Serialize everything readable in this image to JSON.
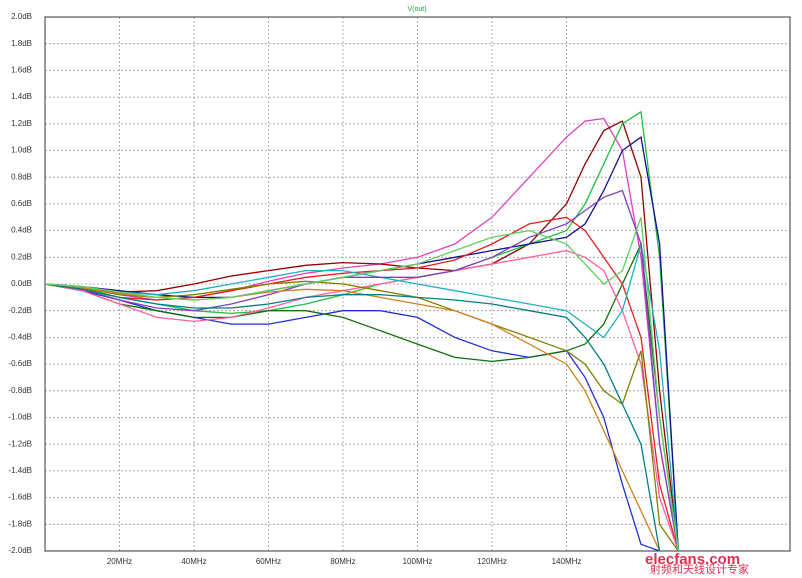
{
  "chart_data": {
    "type": "line",
    "title": "V(out)",
    "title_color": "#20a040",
    "x": [
      0,
      10,
      20,
      30,
      40,
      50,
      60,
      70,
      80,
      90,
      100,
      110,
      120,
      130,
      140,
      145,
      150,
      155,
      160,
      165,
      170
    ],
    "xlim": [
      0,
      200
    ],
    "xticks": [
      {
        "value": 20,
        "label": "20MHz"
      },
      {
        "value": 40,
        "label": "40MHz"
      },
      {
        "value": 60,
        "label": "60MHz"
      },
      {
        "value": 80,
        "label": "80MHz"
      },
      {
        "value": 100,
        "label": "100MHz"
      },
      {
        "value": 120,
        "label": "120MHz"
      },
      {
        "value": 140,
        "label": "140MHz"
      }
    ],
    "ylim": [
      -2.0,
      2.0
    ],
    "yticks": [
      {
        "value": 2.0,
        "label": "2.0dB"
      },
      {
        "value": 1.8,
        "label": "1.8dB"
      },
      {
        "value": 1.6,
        "label": "1.6dB"
      },
      {
        "value": 1.4,
        "label": "1.4dB"
      },
      {
        "value": 1.2,
        "label": "1.2dB"
      },
      {
        "value": 1.0,
        "label": "1.0dB"
      },
      {
        "value": 0.8,
        "label": "0.8dB"
      },
      {
        "value": 0.6,
        "label": "0.6dB"
      },
      {
        "value": 0.4,
        "label": "0.4dB"
      },
      {
        "value": 0.2,
        "label": "0.2dB"
      },
      {
        "value": 0,
        "label": "0.0dB"
      },
      {
        "value": -0.2,
        "label": "-0.2dB"
      },
      {
        "value": -0.4,
        "label": "-0.4dB"
      },
      {
        "value": -0.6,
        "label": "-0.6dB"
      },
      {
        "value": -0.8,
        "label": "-0.8dB"
      },
      {
        "value": -1.0,
        "label": "-1.0dB"
      },
      {
        "value": -1.2,
        "label": "-1.2dB"
      },
      {
        "value": -1.4,
        "label": "-1.4dB"
      },
      {
        "value": -1.6,
        "label": "-1.6dB"
      },
      {
        "value": -1.8,
        "label": "-1.8dB"
      },
      {
        "value": -2.0,
        "label": "-2.0dB"
      }
    ],
    "grid": true,
    "series": [
      {
        "color": "#e040c0",
        "values": [
          0,
          -0.02,
          -0.08,
          -0.12,
          -0.1,
          -0.05,
          0.02,
          0.08,
          0.12,
          0.15,
          0.2,
          0.3,
          0.5,
          0.8,
          1.1,
          1.22,
          1.24,
          1.0,
          0.2,
          -1.2,
          -2.0
        ]
      },
      {
        "color": "#900000",
        "values": [
          0,
          -0.03,
          -0.06,
          -0.05,
          0.0,
          0.06,
          0.1,
          0.14,
          0.16,
          0.15,
          0.12,
          0.1,
          0.15,
          0.3,
          0.6,
          0.9,
          1.15,
          1.22,
          0.8,
          -0.8,
          -2.0
        ]
      },
      {
        "color": "#20c040",
        "values": [
          0,
          -0.03,
          -0.1,
          -0.15,
          -0.2,
          -0.22,
          -0.2,
          -0.15,
          -0.08,
          0.0,
          0.05,
          0.1,
          0.2,
          0.3,
          0.4,
          0.6,
          0.9,
          1.2,
          1.29,
          0.2,
          -2.0
        ]
      },
      {
        "color": "#101090",
        "values": [
          0,
          -0.02,
          -0.05,
          -0.08,
          -0.1,
          -0.1,
          -0.05,
          0.0,
          0.05,
          0.1,
          0.15,
          0.2,
          0.25,
          0.3,
          0.35,
          0.45,
          0.7,
          1.0,
          1.1,
          0.3,
          -2.0
        ]
      },
      {
        "color": "#2030d0",
        "values": [
          0,
          -0.05,
          -0.12,
          -0.2,
          -0.25,
          -0.3,
          -0.3,
          -0.25,
          -0.2,
          -0.2,
          -0.25,
          -0.4,
          -0.5,
          -0.55,
          -0.5,
          -0.7,
          -1.0,
          -1.5,
          -1.95,
          -2.0,
          null
        ]
      },
      {
        "color": "#107010",
        "values": [
          0,
          -0.05,
          -0.15,
          -0.2,
          -0.25,
          -0.25,
          -0.2,
          -0.2,
          -0.25,
          -0.35,
          -0.45,
          -0.55,
          -0.58,
          -0.55,
          -0.5,
          -0.45,
          -0.3,
          0.0,
          0.3,
          -1.0,
          -2.0
        ]
      },
      {
        "color": "#e02020",
        "values": [
          0,
          -0.04,
          -0.1,
          -0.12,
          -0.1,
          -0.05,
          0.0,
          0.05,
          0.08,
          0.1,
          0.12,
          0.18,
          0.3,
          0.45,
          0.5,
          0.4,
          0.2,
          0.0,
          -0.4,
          -1.5,
          -2.0
        ]
      },
      {
        "color": "#ff60a0",
        "values": [
          0,
          -0.05,
          -0.15,
          -0.25,
          -0.28,
          -0.25,
          -0.18,
          -0.1,
          -0.05,
          0.0,
          0.05,
          0.1,
          0.15,
          0.2,
          0.25,
          0.2,
          0.1,
          -0.2,
          -0.6,
          -1.6,
          -2.0
        ]
      },
      {
        "color": "#20b0c0",
        "values": [
          0,
          -0.02,
          -0.06,
          -0.08,
          -0.05,
          0.0,
          0.05,
          0.1,
          0.1,
          0.05,
          0.0,
          -0.05,
          -0.1,
          -0.15,
          -0.2,
          -0.3,
          -0.4,
          -0.2,
          0.3,
          -0.5,
          -2.0
        ]
      },
      {
        "color": "#808000",
        "values": [
          0,
          -0.03,
          -0.08,
          -0.1,
          -0.08,
          -0.04,
          0.0,
          0.02,
          0.0,
          -0.05,
          -0.1,
          -0.2,
          -0.3,
          -0.4,
          -0.5,
          -0.6,
          -0.8,
          -0.9,
          -0.5,
          -1.8,
          -2.0
        ]
      },
      {
        "color": "#8040c0",
        "values": [
          0,
          -0.04,
          -0.12,
          -0.18,
          -0.2,
          -0.15,
          -0.08,
          0.0,
          0.05,
          0.05,
          0.05,
          0.1,
          0.2,
          0.35,
          0.45,
          0.55,
          0.65,
          0.7,
          0.3,
          -1.2,
          -2.0
        ]
      },
      {
        "color": "#d08020",
        "values": [
          0,
          -0.03,
          -0.07,
          -0.1,
          -0.12,
          -0.1,
          -0.06,
          -0.04,
          -0.05,
          -0.1,
          -0.15,
          -0.2,
          -0.3,
          -0.45,
          -0.6,
          -0.8,
          -1.1,
          -1.4,
          -1.7,
          -2.0,
          null
        ]
      },
      {
        "color": "#008080",
        "values": [
          0,
          -0.04,
          -0.1,
          -0.15,
          -0.18,
          -0.18,
          -0.15,
          -0.1,
          -0.08,
          -0.08,
          -0.1,
          -0.12,
          -0.15,
          -0.2,
          -0.25,
          -0.4,
          -0.6,
          -0.9,
          -1.2,
          -2.0,
          null
        ]
      },
      {
        "color": "#60d060",
        "values": [
          0,
          -0.02,
          -0.06,
          -0.1,
          -0.12,
          -0.1,
          -0.05,
          0.0,
          0.05,
          0.1,
          0.15,
          0.25,
          0.35,
          0.4,
          0.3,
          0.15,
          0.0,
          0.1,
          0.5,
          -1.0,
          -2.0
        ]
      }
    ]
  },
  "watermark": {
    "site": "elecfans.com",
    "slogan": "射频和天线设计专家"
  }
}
